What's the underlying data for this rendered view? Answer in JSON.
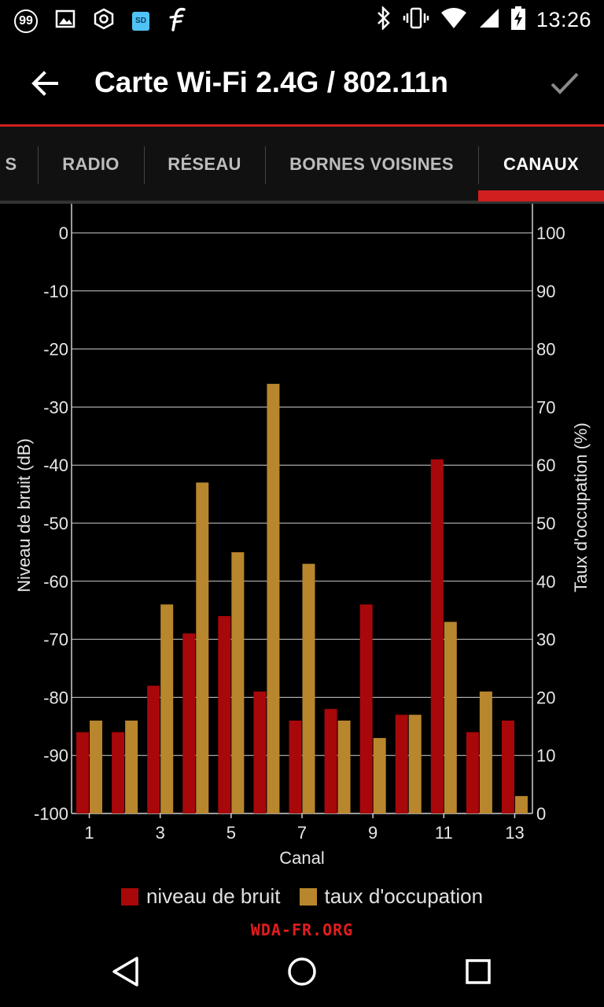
{
  "status_bar": {
    "time": "13:26",
    "notification_badge": "99",
    "sd_label": "SD",
    "left_icons": [
      "badge-99-icon",
      "image-icon",
      "hexagon-settings-icon",
      "sd-card-icon",
      "f-app-icon"
    ],
    "right_icons": [
      "bluetooth-icon",
      "vibrate-icon",
      "wifi-icon",
      "signal-icon",
      "battery-charging-icon"
    ]
  },
  "toolbar": {
    "title": "Carte Wi-Fi 2.4G / 802.11n",
    "back_icon": "arrow-back-icon",
    "confirm_icon": "check-icon"
  },
  "tabs": [
    {
      "label": "S",
      "active": false
    },
    {
      "label": "RADIO",
      "active": false
    },
    {
      "label": "RÉSEAU",
      "active": false
    },
    {
      "label": "BORNES VOISINES",
      "active": false
    },
    {
      "label": "CANAUX",
      "active": true
    }
  ],
  "colors": {
    "accent": "#d11f1f",
    "noise_bar": "#a8080a",
    "occupancy_bar": "#b8862d",
    "grid": "#d0d0d0"
  },
  "chart_data": {
    "type": "bar",
    "title": "",
    "xlabel": "Canal",
    "ylabel_left": "Niveau de bruit (dB)",
    "ylabel_right": "Taux d'occupation (%)",
    "categories": [
      "1",
      "2",
      "3",
      "4",
      "5",
      "6",
      "7",
      "8",
      "9",
      "10",
      "11",
      "12",
      "13"
    ],
    "x_tick_labels": [
      "1",
      "3",
      "5",
      "7",
      "9",
      "11",
      "13"
    ],
    "y_left_ticks": [
      "0",
      "-10",
      "-20",
      "-30",
      "-40",
      "-50",
      "-60",
      "-70",
      "-80",
      "-90",
      "-100"
    ],
    "y_right_ticks": [
      "100",
      "90",
      "80",
      "70",
      "60",
      "50",
      "40",
      "30",
      "20",
      "10",
      "0"
    ],
    "ylim_left": [
      -100,
      0
    ],
    "ylim_right": [
      0,
      100
    ],
    "grid": true,
    "legend_position": "bottom",
    "series": [
      {
        "name": "niveau de bruit",
        "axis": "left",
        "color": "#a8080a",
        "values": [
          -86,
          -86,
          -78,
          -69,
          -66,
          -79,
          -84,
          -82,
          -64,
          -83,
          -39,
          -86,
          -84
        ]
      },
      {
        "name": "taux d'occupation",
        "axis": "right",
        "color": "#b8862d",
        "values": [
          16,
          16,
          36,
          57,
          45,
          74,
          43,
          16,
          13,
          17,
          33,
          21,
          3
        ]
      }
    ]
  },
  "watermark": "WDA-FR.ORG",
  "nav": {
    "back_icon": "nav-back-triangle-icon",
    "home_icon": "nav-home-circle-icon",
    "recents_icon": "nav-recents-square-icon"
  }
}
